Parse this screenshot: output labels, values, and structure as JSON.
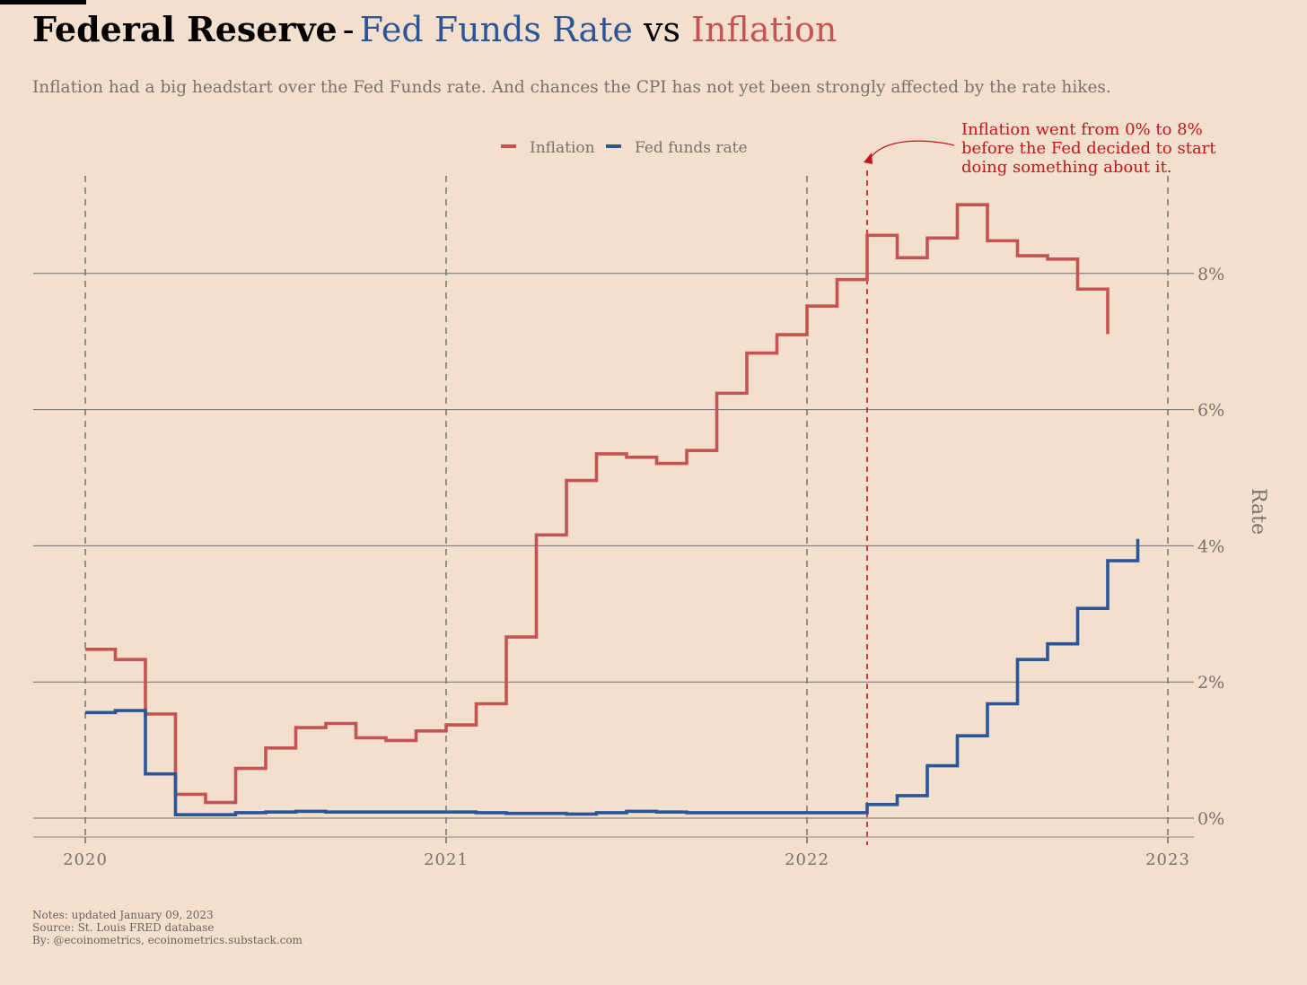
{
  "header": {
    "title_main": "Federal Reserve",
    "title_dash": "-",
    "title_series1": "Fed Funds Rate",
    "title_vs": "vs",
    "title_series2": "Inflation",
    "subtitle": "Inflation had a big headstart over the Fed Funds rate. And chances the CPI has not yet been strongly affected by the rate hikes."
  },
  "colors": {
    "background": "#f3dfce",
    "inflation": "#c55352",
    "fed_funds": "#2a5597",
    "annotation": "#c4151a",
    "grid": "#6e6e6e",
    "muted_text": "#7b7169"
  },
  "chart_data": {
    "type": "line",
    "step": true,
    "x_unit": "month",
    "x_start": "2020-01",
    "xlim": [
      "2019-11",
      "2023-01"
    ],
    "x_ticks": [
      "2020",
      "2021",
      "2022",
      "2023"
    ],
    "ylabel": "Rate",
    "ylim": [
      -0.3,
      9.3
    ],
    "y_ticks": [
      0,
      2,
      4,
      6,
      8
    ],
    "y_tick_labels": [
      "0%",
      "2%",
      "4%",
      "6%",
      "8%"
    ],
    "y_axis_side": "right",
    "grid": {
      "horizontal": true,
      "vertical_year_dashed": true
    },
    "legend": {
      "placement": "top-center"
    },
    "series": [
      {
        "name": "Inflation",
        "color": "#c55352",
        "start": "2020-01",
        "values": [
          2.48,
          2.33,
          1.53,
          0.35,
          0.23,
          0.73,
          1.03,
          1.33,
          1.39,
          1.18,
          1.14,
          1.28,
          1.37,
          1.68,
          2.66,
          4.16,
          4.96,
          5.35,
          5.3,
          5.21,
          5.4,
          6.24,
          6.83,
          7.1,
          7.52,
          7.91,
          8.56,
          8.23,
          8.52,
          9.01,
          8.48,
          8.26,
          8.21,
          7.77,
          7.11
        ]
      },
      {
        "name": "Fed funds rate",
        "color": "#2a5597",
        "start": "2020-01",
        "values": [
          1.55,
          1.58,
          0.65,
          0.05,
          0.05,
          0.08,
          0.09,
          0.1,
          0.09,
          0.09,
          0.09,
          0.09,
          0.09,
          0.08,
          0.07,
          0.07,
          0.06,
          0.08,
          0.1,
          0.09,
          0.08,
          0.08,
          0.08,
          0.08,
          0.08,
          0.08,
          0.2,
          0.33,
          0.77,
          1.21,
          1.68,
          2.33,
          2.56,
          3.08,
          3.78,
          4.1
        ]
      }
    ],
    "marker": {
      "date": "2022-03",
      "style": "dashed-vertical"
    },
    "annotation": "Inflation went from 0% to 8%\nbefore the Fed decided to start\ndoing something about it."
  },
  "footer": {
    "notes": "Notes: updated January 09, 2023",
    "source": "Source: St. Louis FRED database",
    "by": "By: @ecoinometrics, ecoinometrics.substack.com"
  }
}
